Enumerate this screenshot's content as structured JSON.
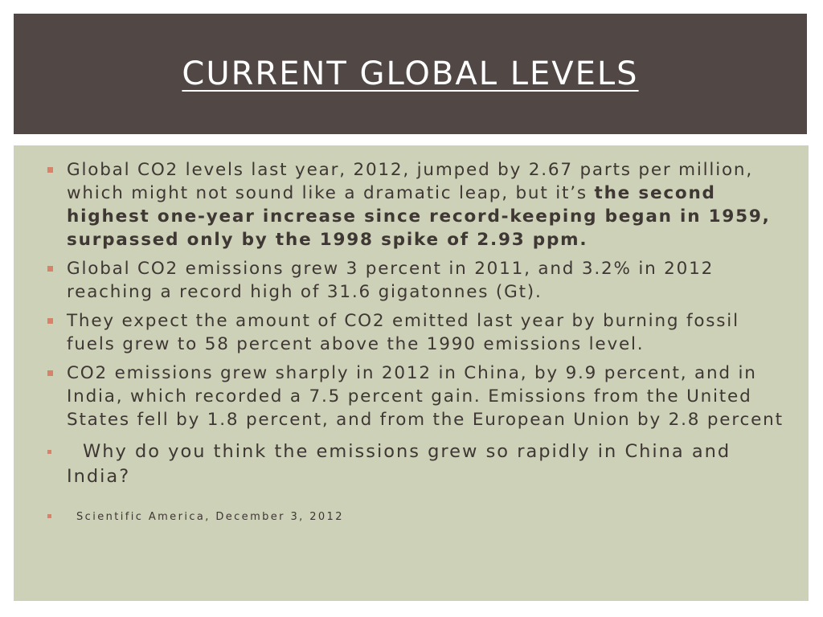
{
  "slide": {
    "title": "CURRENT GLOBAL LEVELS",
    "bullets": [
      {
        "text": "Global CO2 levels last year, 2012, jumped by 2.67 parts per million, which might not sound like a dramatic leap, but it’s ",
        "bold": "the second highest one-year increase since record-keeping began in 1959, surpassed only by the 1998 spike of 2.93 ppm."
      },
      {
        "text": "Global CO2 emissions grew 3 percent in 2011, and 3.2% in 2012 reaching a record high of 31.6 gigatonnes (Gt)."
      },
      {
        "text": "They expect the amount of CO2 emitted last year by burning fossil fuels grew to 58 percent above the 1990 emissions level."
      },
      {
        "text": "CO2 emissions grew sharply in 2012 in China, by 9.9 percent, and in India, which recorded a 7.5 percent gain. Emissions from the United States fell by 1.8 percent, and from the European Union by 2.8 percent"
      }
    ],
    "question": "Why do you think the emissions grew so rapidly in China and India?",
    "source": "Scientific America, December 3, 2012"
  },
  "colors": {
    "title_bar": "#514846",
    "content_bg": "#ccd1b7",
    "bullet_marker": "#d9826a",
    "body_text": "#3f3733",
    "title_text": "#ffffff"
  },
  "icons": {
    "bullet": "square-bullet-icon"
  }
}
